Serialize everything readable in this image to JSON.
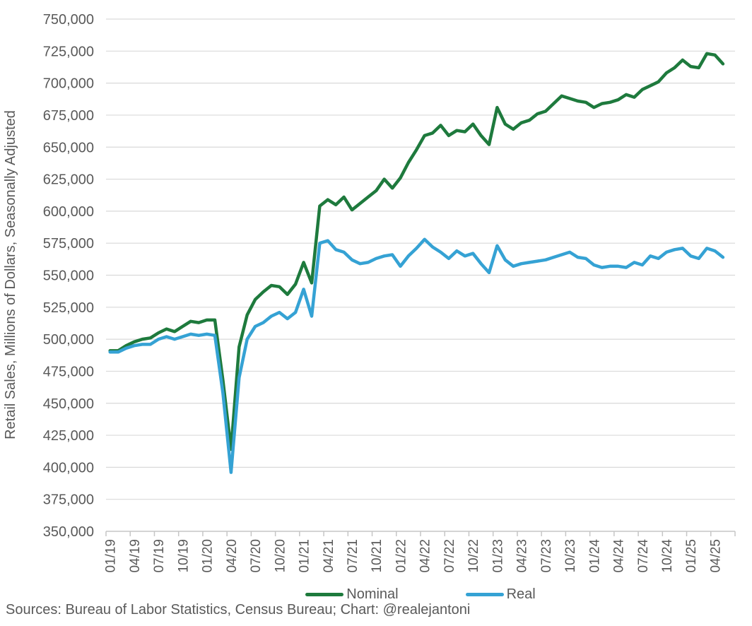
{
  "chart_data": {
    "type": "line",
    "title": "",
    "xlabel": "",
    "ylabel": "Retail Sales, Millions of Dollars, Seasonally Adjusted",
    "ylim": [
      350000,
      750000
    ],
    "ytick_step": 25000,
    "grid": true,
    "legend_position": "bottom-center",
    "x_label_every": 3,
    "x_categories": [
      "01/19",
      "02/19",
      "03/19",
      "04/19",
      "05/19",
      "06/19",
      "07/19",
      "08/19",
      "09/19",
      "10/19",
      "11/19",
      "12/19",
      "01/20",
      "02/20",
      "03/20",
      "04/20",
      "05/20",
      "06/20",
      "07/20",
      "08/20",
      "09/20",
      "10/20",
      "11/20",
      "12/20",
      "01/21",
      "02/21",
      "03/21",
      "04/21",
      "05/21",
      "06/21",
      "07/21",
      "08/21",
      "09/21",
      "10/21",
      "11/21",
      "12/21",
      "01/22",
      "02/22",
      "03/22",
      "04/22",
      "05/22",
      "06/22",
      "07/22",
      "08/22",
      "09/22",
      "10/22",
      "11/22",
      "12/22",
      "01/23",
      "02/23",
      "03/23",
      "04/23",
      "05/23",
      "06/23",
      "07/23",
      "08/23",
      "09/23",
      "10/23",
      "11/23",
      "12/23",
      "01/24",
      "02/24",
      "03/24",
      "04/24",
      "05/24",
      "06/24",
      "07/24",
      "08/24",
      "09/24",
      "10/24",
      "11/24",
      "12/24",
      "01/25",
      "02/25",
      "03/25",
      "04/25",
      "05/25"
    ],
    "x_tick_labels": [
      "01/19",
      "04/19",
      "07/19",
      "10/19",
      "01/20",
      "04/20",
      "07/20",
      "10/20",
      "01/21",
      "04/21",
      "07/21",
      "10/21",
      "01/22",
      "04/22",
      "07/22",
      "10/22",
      "01/23",
      "04/23",
      "07/23",
      "10/23",
      "01/24",
      "04/24",
      "07/24",
      "10/24",
      "01/25",
      "04/25"
    ],
    "series": [
      {
        "name": "Nominal",
        "color": "#1e7a3d",
        "values": [
          491000,
          491000,
          495000,
          498000,
          500000,
          501000,
          505000,
          508000,
          506000,
          510000,
          514000,
          513000,
          515000,
          515000,
          468000,
          414000,
          494000,
          519000,
          531000,
          537000,
          542000,
          541000,
          535000,
          543000,
          560000,
          544000,
          604000,
          609000,
          605000,
          611000,
          601000,
          606000,
          611000,
          616000,
          625000,
          618000,
          626000,
          638000,
          648000,
          659000,
          661000,
          667000,
          659000,
          663000,
          662000,
          668000,
          659000,
          652000,
          681000,
          668000,
          664000,
          669000,
          671000,
          676000,
          678000,
          684000,
          690000,
          688000,
          686000,
          685000,
          681000,
          684000,
          685000,
          687000,
          691000,
          689000,
          695000,
          698000,
          701000,
          708000,
          712000,
          718000,
          713000,
          712000,
          723000,
          722000,
          715000
        ]
      },
      {
        "name": "Real",
        "color": "#35a2d4",
        "values": [
          490000,
          490000,
          493000,
          495000,
          496000,
          496000,
          500000,
          502000,
          500000,
          502000,
          504000,
          503000,
          504000,
          503000,
          458000,
          396000,
          470000,
          500000,
          510000,
          513000,
          518000,
          521000,
          516000,
          521000,
          539000,
          518000,
          575000,
          577000,
          570000,
          568000,
          562000,
          559000,
          560000,
          563000,
          565000,
          566000,
          557000,
          565000,
          571000,
          578000,
          572000,
          568000,
          563000,
          569000,
          565000,
          567000,
          559000,
          552000,
          573000,
          562000,
          557000,
          559000,
          560000,
          561000,
          562000,
          564000,
          566000,
          568000,
          564000,
          563000,
          558000,
          556000,
          557000,
          557000,
          556000,
          560000,
          558000,
          565000,
          563000,
          568000,
          570000,
          571000,
          565000,
          563000,
          571000,
          569000,
          564000
        ]
      }
    ]
  },
  "axis_style": {
    "text_color": "#595959",
    "grid_color": "#d9d9d9",
    "axis_color": "#c6c6c6"
  },
  "footer": {
    "source_text": "Sources: Bureau of Labor Statistics, Census Bureau; Chart: @realejantoni"
  }
}
